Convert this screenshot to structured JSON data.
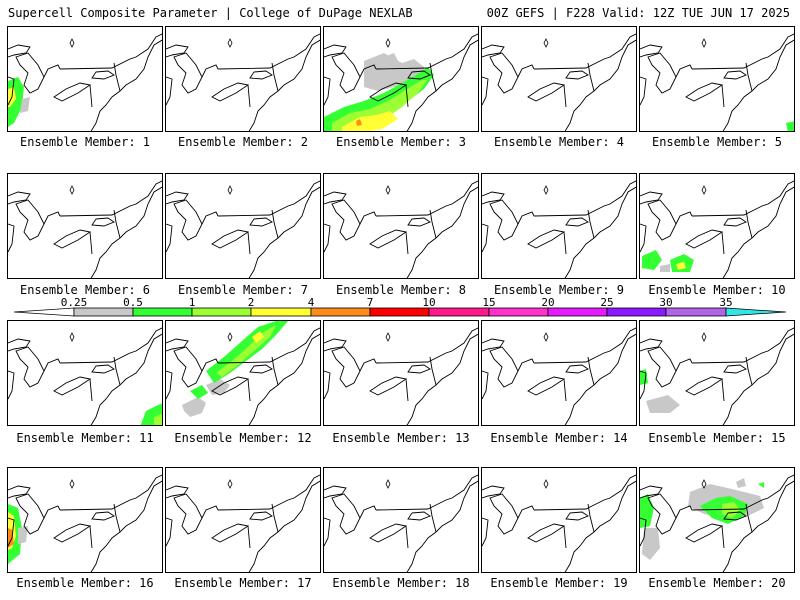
{
  "header": {
    "left": "Supercell Composite Parameter | College of DuPage NEXLAB",
    "right": "00Z GEFS | F228 Valid: 12Z TUE JUN 17 2025"
  },
  "colorbar": {
    "ticks": [
      "0.25",
      "0.5",
      "1",
      "2",
      "4",
      "7",
      "10",
      "15",
      "20",
      "25",
      "30",
      "35"
    ],
    "colors": [
      "#ffffff",
      "#c8c8c8",
      "#33ff33",
      "#9cff33",
      "#ffff33",
      "#ff8c1a",
      "#ff0000",
      "#ff1a8c",
      "#ff33cc",
      "#e61aff",
      "#8c1aff",
      "#b266e6",
      "#33e6e6"
    ]
  },
  "members": [
    {
      "label": "Ensemble Member: 1"
    },
    {
      "label": "Ensemble Member: 2"
    },
    {
      "label": "Ensemble Member: 3"
    },
    {
      "label": "Ensemble Member: 4"
    },
    {
      "label": "Ensemble Member: 5"
    },
    {
      "label": "Ensemble Member: 6"
    },
    {
      "label": "Ensemble Member: 7"
    },
    {
      "label": "Ensemble Member: 8"
    },
    {
      "label": "Ensemble Member: 9"
    },
    {
      "label": "Ensemble Member: 10"
    },
    {
      "label": "Ensemble Member: 11"
    },
    {
      "label": "Ensemble Member: 12"
    },
    {
      "label": "Ensemble Member: 13"
    },
    {
      "label": "Ensemble Member: 14"
    },
    {
      "label": "Ensemble Member: 15"
    },
    {
      "label": "Ensemble Member: 16"
    },
    {
      "label": "Ensemble Member: 17"
    },
    {
      "label": "Ensemble Member: 18"
    },
    {
      "label": "Ensemble Member: 19"
    },
    {
      "label": "Ensemble Member: 20"
    }
  ]
}
